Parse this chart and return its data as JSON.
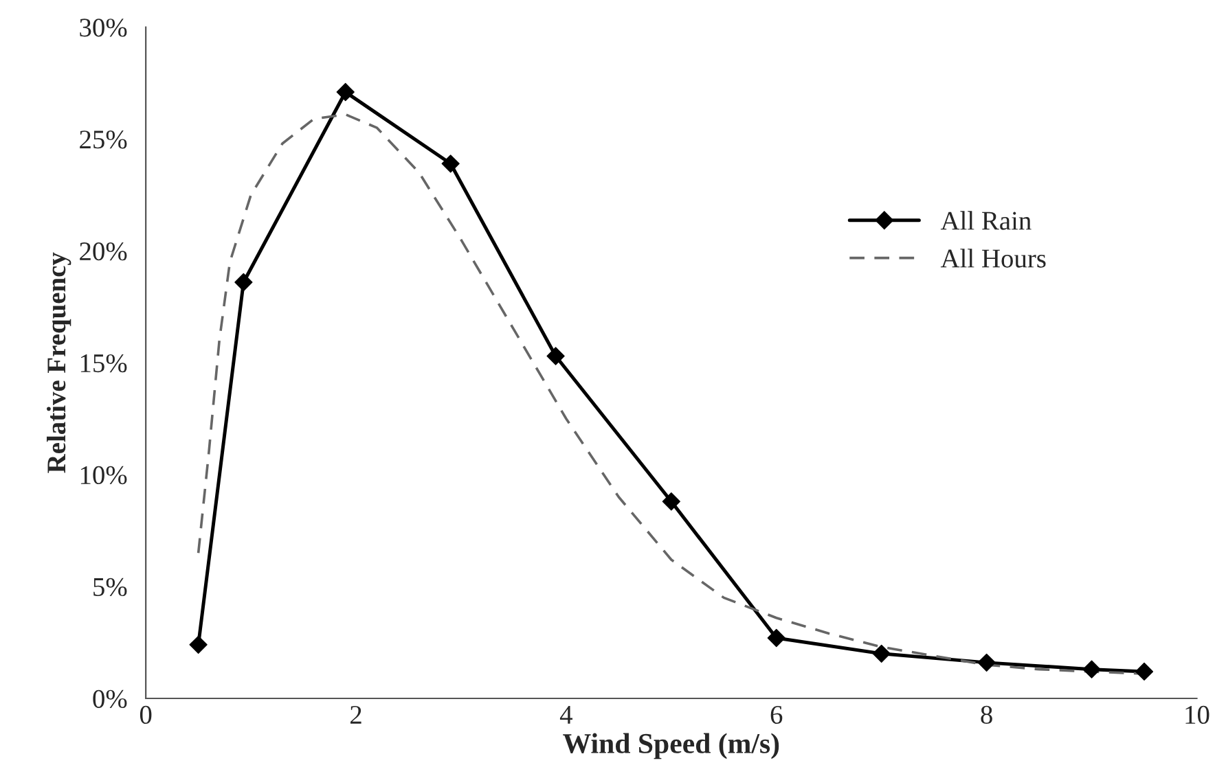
{
  "chart_data": {
    "type": "line",
    "xlabel": "Wind Speed (m/s)",
    "ylabel": "Relative Frequency",
    "xlim": [
      0,
      10
    ],
    "xticks": [
      0,
      2,
      4,
      6,
      8,
      10
    ],
    "ylim": [
      0,
      30
    ],
    "yticks": [
      {
        "value": 0,
        "label": "0%"
      },
      {
        "value": 5,
        "label": "5%"
      },
      {
        "value": 10,
        "label": "10%"
      },
      {
        "value": 15,
        "label": "15%"
      },
      {
        "value": 20,
        "label": "20%"
      },
      {
        "value": 25,
        "label": "25%"
      },
      {
        "value": 30,
        "label": "30%"
      }
    ],
    "grid": false,
    "legend": "right",
    "series": [
      {
        "name": "All Rain",
        "color": "#000000",
        "marker": "diamond",
        "line_style": "solid",
        "x": [
          0.5,
          0.93,
          1.9,
          2.9,
          3.9,
          5.0,
          6.0,
          7.0,
          8.0,
          9.0,
          9.5
        ],
        "values": [
          2.4,
          18.6,
          27.1,
          23.9,
          15.3,
          8.8,
          2.7,
          2.0,
          1.6,
          1.3,
          1.2
        ]
      },
      {
        "name": "All Hours",
        "color": "#666666",
        "marker": "none",
        "line_style": "dashed",
        "x": [
          0.5,
          0.6,
          0.7,
          0.8,
          1.0,
          1.3,
          1.6,
          1.9,
          2.2,
          2.6,
          3.0,
          3.5,
          4.0,
          4.5,
          5.0,
          5.5,
          6.0,
          6.5,
          7.0,
          7.5,
          8.0,
          8.5,
          9.0,
          9.5
        ],
        "values": [
          6.5,
          11,
          16,
          19.5,
          22.5,
          24.8,
          25.9,
          26.1,
          25.5,
          23.5,
          20.5,
          16.5,
          12.5,
          9.0,
          6.2,
          4.5,
          3.6,
          2.9,
          2.3,
          1.9,
          1.5,
          1.3,
          1.2,
          1.1
        ]
      }
    ]
  }
}
